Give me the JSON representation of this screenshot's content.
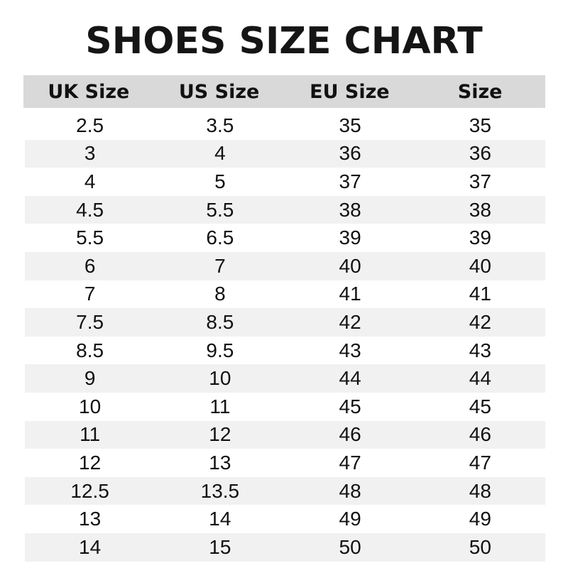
{
  "title": "SHOES SIZE CHART",
  "colors": {
    "header_bg": "#d9d9d9",
    "stripe_bg": "#f1f1f1"
  },
  "headers": [
    "UK Size",
    "US Size",
    "EU Size",
    "Size"
  ],
  "rows": [
    [
      "2.5",
      "3.5",
      "35",
      "35"
    ],
    [
      "3",
      "4",
      "36",
      "36"
    ],
    [
      "4",
      "5",
      "37",
      "37"
    ],
    [
      "4.5",
      "5.5",
      "38",
      "38"
    ],
    [
      "5.5",
      "6.5",
      "39",
      "39"
    ],
    [
      "6",
      "7",
      "40",
      "40"
    ],
    [
      "7",
      "8",
      "41",
      "41"
    ],
    [
      "7.5",
      "8.5",
      "42",
      "42"
    ],
    [
      "8.5",
      "9.5",
      "43",
      "43"
    ],
    [
      "9",
      "10",
      "44",
      "44"
    ],
    [
      "10",
      "11",
      "45",
      "45"
    ],
    [
      "11",
      "12",
      "46",
      "46"
    ],
    [
      "12",
      "13",
      "47",
      "47"
    ],
    [
      "12.5",
      "13.5",
      "48",
      "48"
    ],
    [
      "13",
      "14",
      "49",
      "49"
    ],
    [
      "14",
      "15",
      "50",
      "50"
    ]
  ]
}
